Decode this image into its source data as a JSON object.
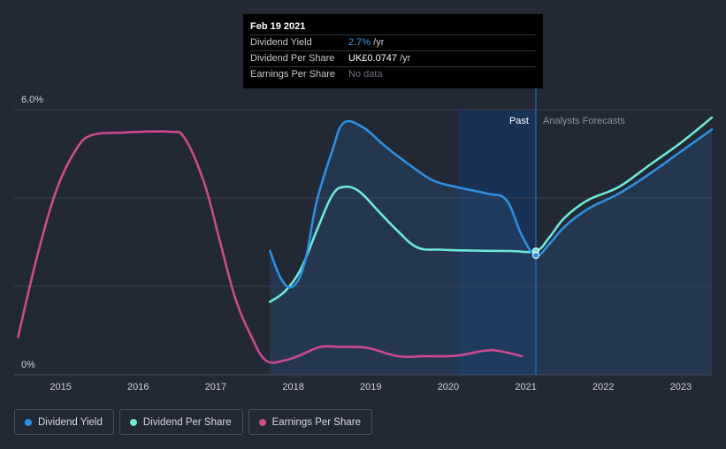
{
  "tooltip": {
    "date": "Feb 19 2021",
    "rows": [
      {
        "label": "Dividend Yield",
        "value": "2.7%",
        "unit": "/yr"
      },
      {
        "label": "Dividend Per Share",
        "value": "UK£0.0747",
        "unit": "/yr"
      },
      {
        "label": "Earnings Per Share",
        "value": "No data",
        "unit": ""
      }
    ]
  },
  "colors": {
    "background": "#222834",
    "dividend_yield": "#2e8ee0",
    "dividend_per_share": "#6ee8d6",
    "earnings_per_share": "#cc4b8f",
    "past_band": "#17335a",
    "grid": "#3a404c"
  },
  "chart_data": {
    "type": "line",
    "y_tick_labels": [
      "6.0%",
      "0%"
    ],
    "ylim_percent": [
      0,
      6.0
    ],
    "x_ticks": [
      "2015",
      "2016",
      "2017",
      "2018",
      "2019",
      "2020",
      "2021",
      "2022",
      "2023"
    ],
    "xlim": [
      2014.4,
      2023.4
    ],
    "past_label": "Past",
    "forecast_label": "Analysts Forecasts",
    "divider_x": 2021.13,
    "series": [
      {
        "name": "Dividend Yield",
        "unit": "percent",
        "points": [
          [
            2017.7,
            2.8
          ],
          [
            2017.85,
            2.15
          ],
          [
            2018.0,
            2.0
          ],
          [
            2018.15,
            2.55
          ],
          [
            2018.3,
            3.9
          ],
          [
            2018.5,
            5.05
          ],
          [
            2018.65,
            5.7
          ],
          [
            2018.9,
            5.6
          ],
          [
            2019.2,
            5.15
          ],
          [
            2019.5,
            4.75
          ],
          [
            2019.8,
            4.4
          ],
          [
            2020.1,
            4.25
          ],
          [
            2020.5,
            4.1
          ],
          [
            2020.75,
            3.95
          ],
          [
            2020.95,
            3.15
          ],
          [
            2021.13,
            2.7
          ],
          [
            2021.3,
            2.95
          ],
          [
            2021.5,
            3.35
          ],
          [
            2021.8,
            3.75
          ],
          [
            2022.2,
            4.1
          ],
          [
            2022.6,
            4.55
          ],
          [
            2023.0,
            5.05
          ],
          [
            2023.4,
            5.55
          ]
        ]
      },
      {
        "name": "Dividend Per Share",
        "unit": "relative",
        "points": [
          [
            2017.7,
            1.65
          ],
          [
            2017.9,
            1.9
          ],
          [
            2018.1,
            2.4
          ],
          [
            2018.3,
            3.25
          ],
          [
            2018.5,
            4.05
          ],
          [
            2018.65,
            4.25
          ],
          [
            2018.85,
            4.15
          ],
          [
            2019.1,
            3.7
          ],
          [
            2019.35,
            3.25
          ],
          [
            2019.6,
            2.88
          ],
          [
            2019.9,
            2.83
          ],
          [
            2020.3,
            2.81
          ],
          [
            2020.8,
            2.8
          ],
          [
            2021.13,
            2.8
          ],
          [
            2021.3,
            3.1
          ],
          [
            2021.5,
            3.55
          ],
          [
            2021.8,
            3.95
          ],
          [
            2022.2,
            4.25
          ],
          [
            2022.6,
            4.75
          ],
          [
            2023.0,
            5.25
          ],
          [
            2023.4,
            5.82
          ]
        ]
      },
      {
        "name": "Earnings Per Share",
        "unit": "relative",
        "points": [
          [
            2014.45,
            0.85
          ],
          [
            2014.7,
            2.7
          ],
          [
            2014.95,
            4.2
          ],
          [
            2015.2,
            5.1
          ],
          [
            2015.4,
            5.42
          ],
          [
            2015.8,
            5.48
          ],
          [
            2016.4,
            5.5
          ],
          [
            2016.6,
            5.35
          ],
          [
            2016.85,
            4.35
          ],
          [
            2017.05,
            3.05
          ],
          [
            2017.25,
            1.75
          ],
          [
            2017.45,
            0.9
          ],
          [
            2017.65,
            0.32
          ],
          [
            2017.9,
            0.33
          ],
          [
            2018.1,
            0.45
          ],
          [
            2018.35,
            0.63
          ],
          [
            2018.6,
            0.63
          ],
          [
            2018.95,
            0.61
          ],
          [
            2019.35,
            0.42
          ],
          [
            2019.7,
            0.42
          ],
          [
            2020.1,
            0.43
          ],
          [
            2020.45,
            0.54
          ],
          [
            2020.65,
            0.54
          ],
          [
            2020.95,
            0.42
          ]
        ]
      }
    ],
    "legend": [
      "Dividend Yield",
      "Dividend Per Share",
      "Earnings Per Share"
    ],
    "grid": true,
    "legend_position": "bottom-left"
  }
}
